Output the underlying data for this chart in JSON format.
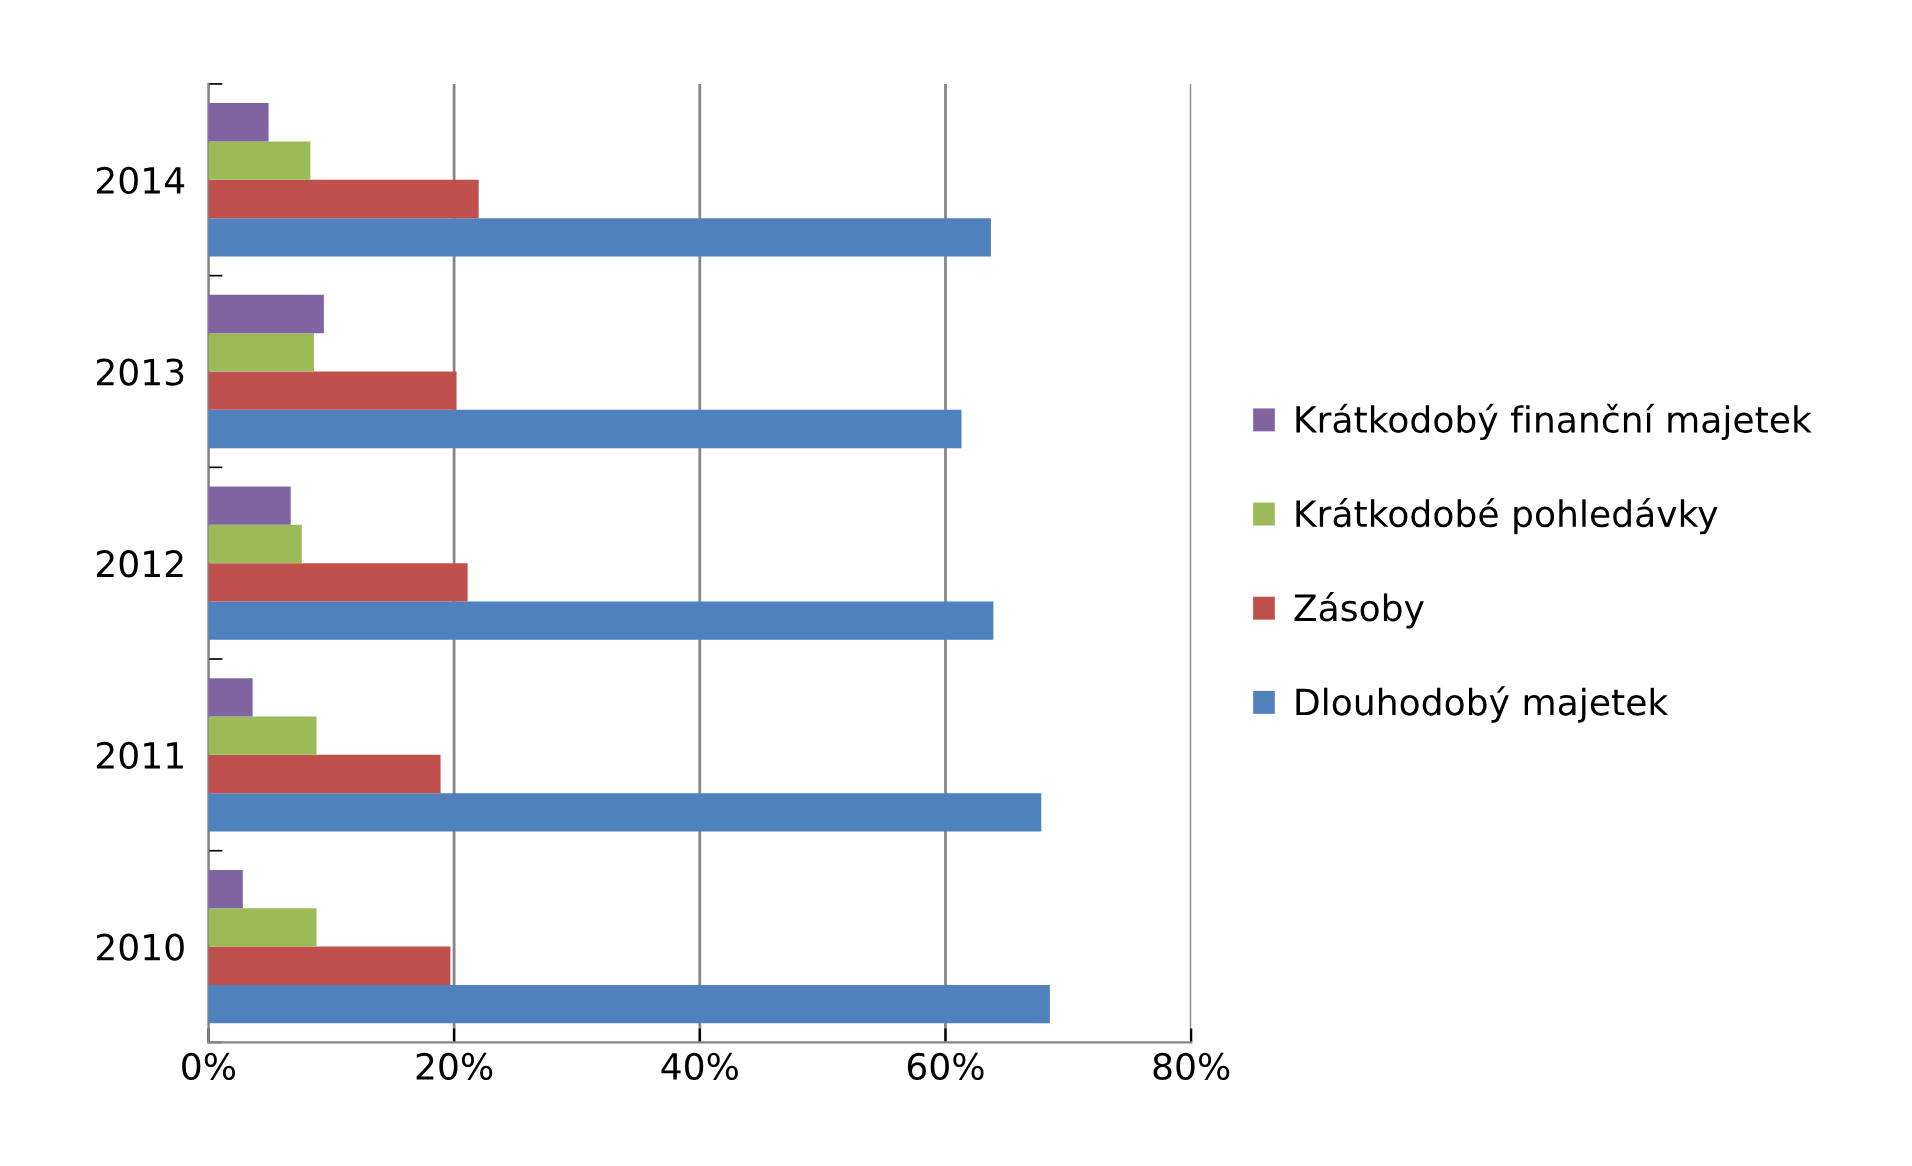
{
  "chart_data": {
    "type": "bar",
    "orientation": "horizontal",
    "categories": [
      "2014",
      "2013",
      "2012",
      "2011",
      "2010"
    ],
    "series": [
      {
        "name": "Dlouhodobý majetek",
        "color": "#4f81bd",
        "values": [
          63.7,
          61.3,
          63.9,
          67.8,
          68.5
        ]
      },
      {
        "name": "Zásoby",
        "color": "#c0504d",
        "values": [
          22.0,
          20.2,
          21.1,
          18.9,
          19.7
        ]
      },
      {
        "name": "Krátkodobé pohledávky",
        "color": "#9bbb59",
        "values": [
          8.3,
          8.6,
          7.6,
          8.8,
          8.8
        ]
      },
      {
        "name": "Krátkodobý finanční majetek",
        "color": "#8064a2",
        "values": [
          4.9,
          9.4,
          6.7,
          3.6,
          2.8
        ]
      }
    ],
    "xlim": [
      0,
      80
    ],
    "xticks": [
      {
        "value": 0,
        "label": "0%"
      },
      {
        "value": 20,
        "label": "20%"
      },
      {
        "value": 40,
        "label": "40%"
      },
      {
        "value": 60,
        "label": "60%"
      },
      {
        "value": 80,
        "label": "80%"
      }
    ],
    "grid": "x",
    "legend": "right"
  }
}
